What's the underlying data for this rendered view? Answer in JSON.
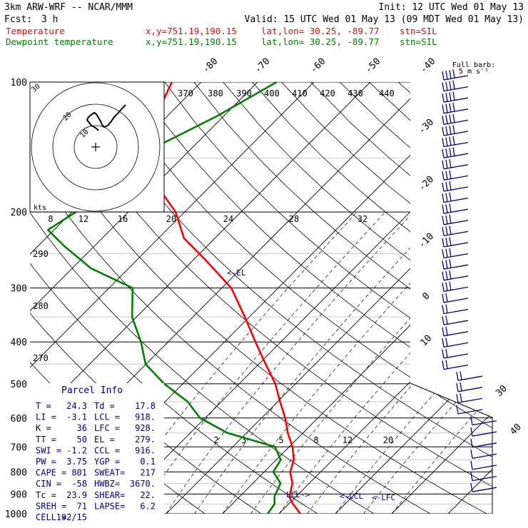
{
  "header": {
    "model": "3km ARW-WRF -- NCAR/MMM",
    "init": "Init: 12 UTC Wed 01 May 13",
    "fcst_label": "Fcst:",
    "fcst_value": "3 h",
    "valid": "Valid: 15 UTC Wed 01 May 13 (09 MDT Wed 01 May 13)"
  },
  "legend": [
    {
      "label": "Temperature",
      "xy": "x,y=751.19,190.15",
      "latlon": "lat,lon= 30.25, -89.77",
      "stn": "stn=SIL",
      "color": "#ff0000"
    },
    {
      "label": "Dewpoint temperature",
      "xy": "x,y=751.19,190.15",
      "latlon": "lat,lon= 30.25, -89.77",
      "stn": "stn=SIL",
      "color": "#008000"
    }
  ],
  "barb_legend": {
    "line1": "Full barb:",
    "line2": "5 m s⁻¹"
  },
  "hodograph": {
    "unit": "kts",
    "ring_labels": [
      "30",
      "20",
      "10"
    ]
  },
  "inset_speed_ticks": [
    "8",
    "12",
    "16",
    "20",
    "24",
    "28",
    "32"
  ],
  "pressure_labels": [
    "100",
    "200",
    "300",
    "400",
    "500",
    "600",
    "700",
    "800",
    "900",
    "1000"
  ],
  "top_isotherm_labels": [
    "-80",
    "-70",
    "-60",
    "-50",
    "-40"
  ],
  "right_isotherm_labels": [
    "-30",
    "-20",
    "-10",
    "0",
    "10"
  ],
  "outer_labels": [
    "30",
    "40"
  ],
  "theta_e_labels": [
    "370",
    "380",
    "390",
    "400",
    "410",
    "420",
    "430",
    "440"
  ],
  "theta_labels": [
    "290",
    "280",
    "270"
  ],
  "mixing_ratio_labels": [
    "2",
    "3",
    "5",
    "8",
    "12",
    "20"
  ],
  "level_markers": {
    "el": "<-EL",
    "lcl_left": "LCL->",
    "lcl_right": "<-LCL",
    "lfc": "<-LFC"
  },
  "parcel_info": {
    "title": "Parcel Info",
    "rows": [
      [
        "T  =",
        "24.3",
        "Td =",
        "17.8"
      ],
      [
        "LI =",
        "-3.1",
        "LCL =",
        "918."
      ],
      [
        "K  =",
        "36",
        "LFC =",
        "928."
      ],
      [
        "TT =",
        "50",
        "EL =",
        "279."
      ],
      [
        "SWI =",
        "-1.2",
        "CCL =",
        "916."
      ],
      [
        "PW =",
        "3.75",
        "YGP =",
        "0.1"
      ],
      [
        "CAPE =",
        "801",
        "SWEAT=",
        "217"
      ],
      [
        "CIN =",
        "-58",
        "HWBZ=",
        "3670."
      ],
      [
        "Tc =",
        "23.9",
        "SHEAR=",
        "22."
      ],
      [
        "SREH =",
        "71",
        "LAPSE=",
        "6.2"
      ],
      [
        "CELL =",
        "192/15",
        "",
        ""
      ]
    ]
  },
  "chart_data": {
    "type": "line",
    "title": "",
    "xlabel": "",
    "ylabel": "",
    "y_scale": "log-pressure",
    "ylim": [
      1000,
      100
    ],
    "series": [
      {
        "name": "Temperature",
        "color": "#ff0000",
        "points": [
          [
            23.8,
            1000
          ],
          [
            20.8,
            950
          ],
          [
            18.9,
            915
          ],
          [
            17.0,
            850
          ],
          [
            14.6,
            800
          ],
          [
            13.1,
            750
          ],
          [
            10.6,
            700
          ],
          [
            7.3,
            650
          ],
          [
            4.2,
            600
          ],
          [
            0.4,
            550
          ],
          [
            -3.6,
            500
          ],
          [
            -8.8,
            450
          ],
          [
            -14.5,
            400
          ],
          [
            -20.8,
            350
          ],
          [
            -28.3,
            300
          ],
          [
            -37.4,
            260
          ],
          [
            -45.5,
            230
          ],
          [
            -51.6,
            200
          ],
          [
            -60.8,
            170
          ],
          [
            -68.2,
            145
          ],
          [
            -71.3,
            125
          ],
          [
            -75.2,
            100
          ]
        ]
      },
      {
        "name": "Dewpoint temperature",
        "color": "#008000",
        "points": [
          [
            18.0,
            1000
          ],
          [
            17.5,
            950
          ],
          [
            16.1,
            910
          ],
          [
            14.9,
            850
          ],
          [
            11.6,
            800
          ],
          [
            10.8,
            750
          ],
          [
            7.5,
            700
          ],
          [
            -3.4,
            650
          ],
          [
            -10.9,
            600
          ],
          [
            -16.0,
            550
          ],
          [
            -23.3,
            500
          ],
          [
            -30.1,
            450
          ],
          [
            -34.8,
            400
          ],
          [
            -40.8,
            350
          ],
          [
            -45.8,
            300
          ],
          [
            -56.7,
            270
          ],
          [
            -65.3,
            240
          ],
          [
            -71.1,
            220
          ],
          [
            -69.3,
            200
          ],
          [
            -68.6,
            180
          ],
          [
            -69.5,
            160
          ],
          [
            -66.3,
            140
          ],
          [
            -61.2,
            120
          ],
          [
            -56.6,
            100
          ]
        ]
      }
    ]
  }
}
